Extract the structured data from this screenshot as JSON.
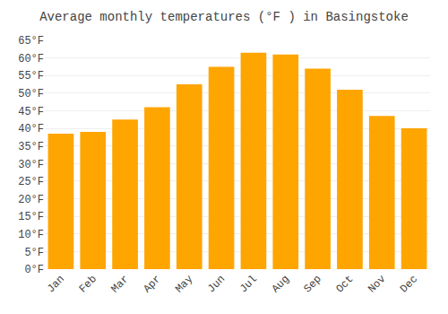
{
  "chart_data": {
    "type": "bar",
    "title": "Average monthly temperatures (°F ) in Basingstoke",
    "categories": [
      "Jan",
      "Feb",
      "Mar",
      "Apr",
      "May",
      "Jun",
      "Jul",
      "Aug",
      "Sep",
      "Oct",
      "Nov",
      "Dec"
    ],
    "values": [
      38.5,
      39.0,
      42.5,
      46.0,
      52.5,
      57.5,
      61.5,
      61.0,
      57.0,
      51.0,
      43.5,
      40.0
    ],
    "color": "#FFA500",
    "ylim": [
      0,
      65
    ],
    "yticks": [
      {
        "value": 0,
        "label": "0°F"
      },
      {
        "value": 5,
        "label": "5°F"
      },
      {
        "value": 10,
        "label": "10°F"
      },
      {
        "value": 15,
        "label": "15°F"
      },
      {
        "value": 20,
        "label": "20°F"
      },
      {
        "value": 25,
        "label": "25°F"
      },
      {
        "value": 30,
        "label": "30°F"
      },
      {
        "value": 35,
        "label": "35°F"
      },
      {
        "value": 40,
        "label": "40°F"
      },
      {
        "value": 45,
        "label": "45°F"
      },
      {
        "value": 50,
        "label": "50°F"
      },
      {
        "value": 55,
        "label": "55°F"
      },
      {
        "value": 60,
        "label": "60°F"
      },
      {
        "value": 65,
        "label": "65°F"
      }
    ],
    "grid": true
  }
}
